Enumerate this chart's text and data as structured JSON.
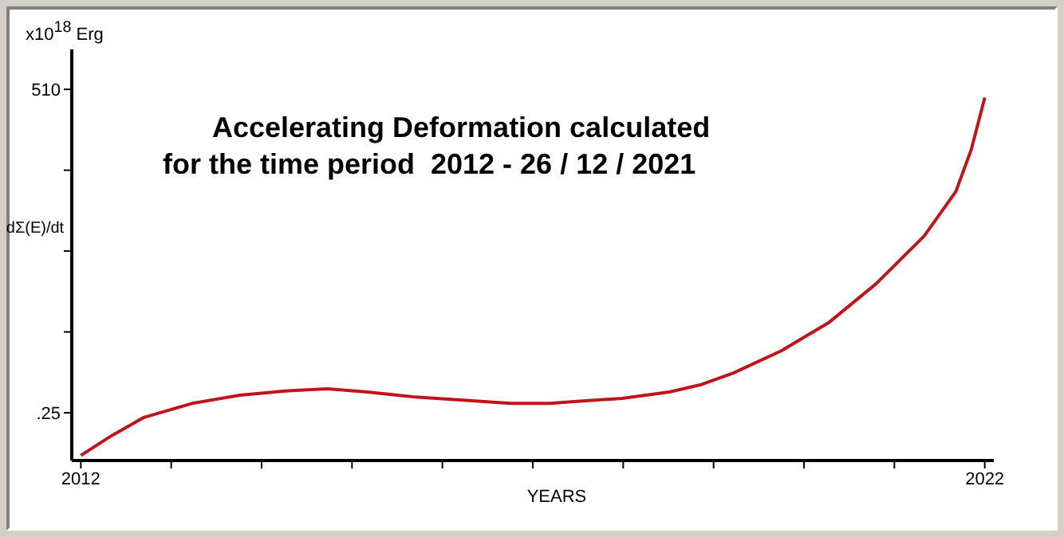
{
  "chart_data": {
    "type": "line",
    "title": "Accelerating Deformation calculated\nfor the time period  2012 - 26 / 12 / 2021",
    "xlabel": "YEARS",
    "ylabel": "dΣ(E)/dt",
    "annotations": [
      "x10$^{18}$ Erg"
    ],
    "x": [
      2012,
      2012.35,
      2012.7,
      2013.23,
      2013.76,
      2014.29,
      2014.73,
      2015.17,
      2015.7,
      2016.23,
      2016.75,
      2017.19,
      2017.46,
      2017.99,
      2018.51,
      2018.87,
      2019.22,
      2019.75,
      2020.28,
      2020.8,
      2021.33,
      2021.68,
      2021.85,
      2022
    ],
    "series": [
      {
        "color": "#c0141c",
        "values": [
          -67,
          -35,
          -7,
          15,
          28,
          35,
          38,
          33,
          25,
          20,
          15,
          15,
          18,
          23,
          33,
          45,
          63,
          98,
          143,
          204,
          279,
          349,
          415,
          497
        ]
      }
    ],
    "xlim": [
      2011.9,
      2022.1
    ],
    "xticks": [
      2012,
      {
        "value": 2013,
        "label": null
      },
      {
        "value": 2014,
        "label": null
      },
      {
        "value": 2015,
        "label": null
      },
      {
        "value": 2016,
        "label": null
      },
      {
        "value": 2017,
        "label": null
      },
      {
        "value": 2018,
        "label": null
      },
      {
        "value": 2019,
        "label": null
      },
      {
        "value": 2020,
        "label": null
      },
      {
        "value": 2021,
        "label": null
      },
      2022
    ],
    "ylim": [
      -75,
      573
    ],
    "yticks": [
      {
        "value": 0.25,
        "label": ".25"
      },
      {
        "value": 127.69,
        "label": null
      },
      {
        "value": 255.13,
        "label": null
      },
      {
        "value": 382.56,
        "label": null
      },
      510
    ],
    "grid": false,
    "legend": false,
    "marker": "none",
    "line_style": "solid"
  }
}
